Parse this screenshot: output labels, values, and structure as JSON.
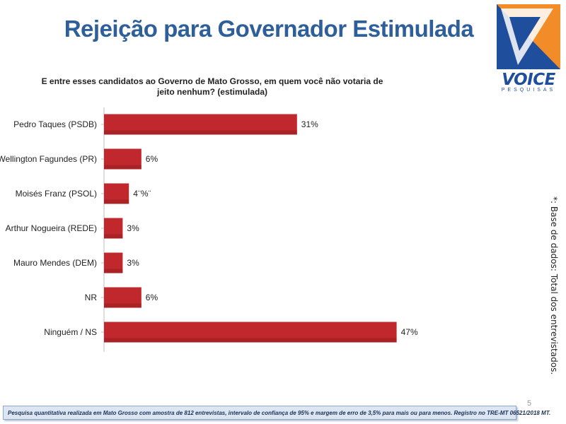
{
  "slide": {
    "title": "Rejeição para Governador Estimulada",
    "question": "E entre esses candidatos ao Governo de Mato Grosso, em quem você não votaria de jeito nenhum? (estimulada)",
    "side_note": "*: Base de dados: Total dos  entrevistados.",
    "page_number": "5",
    "footer": "Pesquisa quantitativa realizada em Mato Grosso com  amostra de 812 entrevistas, intervalo de confiança de 95% e margem de erro de 3,5% para mais ou para menos. Registro no TRE-MT  06521/2018 MT."
  },
  "logo": {
    "text": "VOICE",
    "subtext": "PESQUISAS",
    "colors": {
      "blue": "#1f4e9c",
      "orange": "#f28c28"
    }
  },
  "chart_data": {
    "type": "bar",
    "orientation": "horizontal",
    "categories": [
      "Pedro Taques (PSDB)",
      "Wellington Fagundes (PR)",
      "Moisés Franz (PSOL)",
      "Arthur Nogueira (REDE)",
      "Mauro Mendes (DEM)",
      "NR",
      "Ninguém / NS"
    ],
    "values": [
      31,
      6,
      4,
      3,
      3,
      6,
      47
    ],
    "data_labels": [
      "31%",
      "6%",
      "4¨%¨",
      "3%",
      "3%",
      "6%",
      "47%"
    ],
    "bar_color": "#c0282d",
    "grid": false,
    "legend": "none"
  }
}
